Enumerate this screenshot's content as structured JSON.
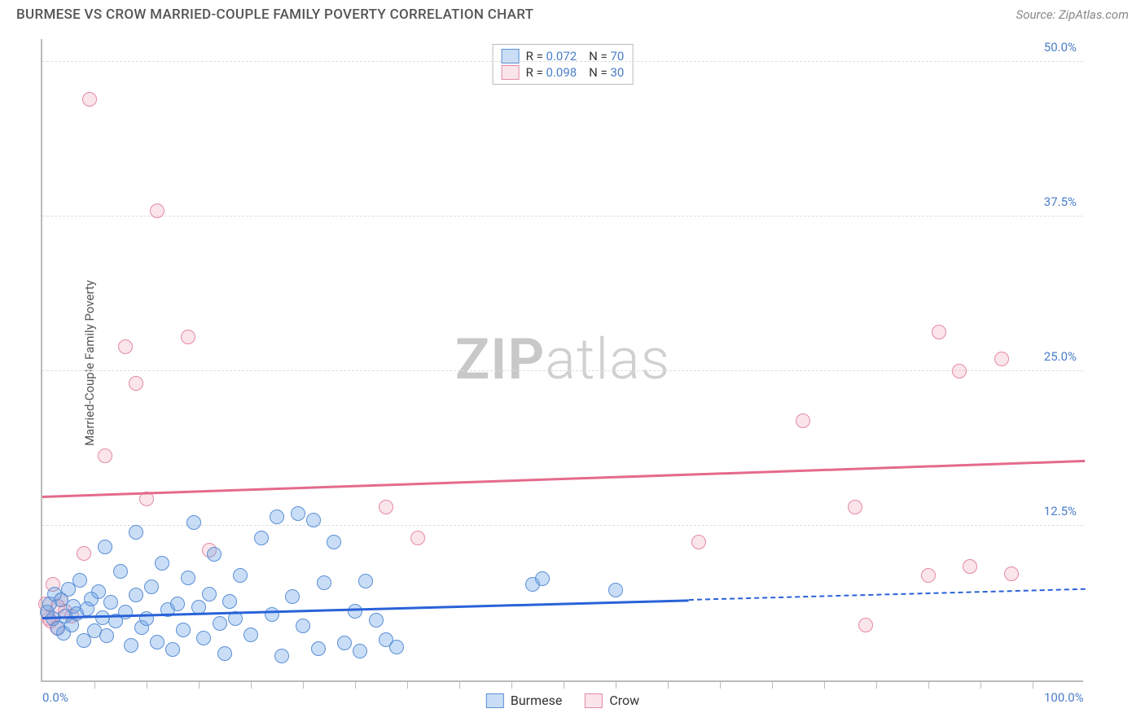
{
  "header": {
    "title": "BURMESE VS CROW MARRIED-COUPLE FAMILY POVERTY CORRELATION CHART",
    "source": "Source: ZipAtlas.com"
  },
  "chart": {
    "type": "scatter",
    "ylabel": "Married-Couple Family Poverty",
    "xlim": [
      0,
      100
    ],
    "ylim": [
      0,
      52
    ],
    "background_color": "#ffffff",
    "grid_color": "#dddddd",
    "axis_color": "#bbbbbb",
    "marker_size": 18,
    "watermark": {
      "left": "ZIP",
      "right": "atlas"
    },
    "yticks": [
      {
        "value": 12.5,
        "label": "12.5%"
      },
      {
        "value": 25.0,
        "label": "25.0%"
      },
      {
        "value": 37.5,
        "label": "37.5%"
      },
      {
        "value": 50.0,
        "label": "50.0%"
      }
    ],
    "xticks_minor": [
      5,
      10,
      15,
      20,
      25,
      30,
      35,
      40,
      45,
      50,
      55,
      60,
      65,
      70,
      75,
      80,
      85,
      90,
      95
    ],
    "xticks_labeled": [
      {
        "value": 0,
        "label": "0.0%"
      },
      {
        "value": 100,
        "label": "100.0%"
      }
    ],
    "series": {
      "burmese": {
        "label": "Burmese",
        "color_fill": "rgba(100,160,230,0.35)",
        "color_stroke": "#5b8fd6",
        "trend_color": "#2962d9",
        "trend": {
          "x1": 0,
          "y1": 5.0,
          "x2": 100,
          "y2": 7.3,
          "solid_until_x": 62
        },
        "points": [
          {
            "x": 0.5,
            "y": 5.5
          },
          {
            "x": 0.7,
            "y": 6.2
          },
          {
            "x": 1.0,
            "y": 5.0
          },
          {
            "x": 1.2,
            "y": 7.0
          },
          {
            "x": 1.5,
            "y": 4.2
          },
          {
            "x": 1.8,
            "y": 6.5
          },
          {
            "x": 2.0,
            "y": 3.8
          },
          {
            "x": 2.2,
            "y": 5.2
          },
          {
            "x": 2.5,
            "y": 7.4
          },
          {
            "x": 2.8,
            "y": 4.5
          },
          {
            "x": 3.0,
            "y": 6.0
          },
          {
            "x": 3.3,
            "y": 5.4
          },
          {
            "x": 3.6,
            "y": 8.1
          },
          {
            "x": 4.0,
            "y": 3.2
          },
          {
            "x": 4.3,
            "y": 5.8
          },
          {
            "x": 4.7,
            "y": 6.6
          },
          {
            "x": 5.0,
            "y": 4.0
          },
          {
            "x": 5.4,
            "y": 7.2
          },
          {
            "x": 5.8,
            "y": 5.1
          },
          {
            "x": 6.2,
            "y": 3.6
          },
          {
            "x": 6.6,
            "y": 6.3
          },
          {
            "x": 7.0,
            "y": 4.8
          },
          {
            "x": 7.5,
            "y": 8.8
          },
          {
            "x": 8.0,
            "y": 5.5
          },
          {
            "x": 8.5,
            "y": 2.8
          },
          {
            "x": 9.0,
            "y": 6.9
          },
          {
            "x": 9.5,
            "y": 4.3
          },
          {
            "x": 10.0,
            "y": 5.0
          },
          {
            "x": 10.5,
            "y": 7.6
          },
          {
            "x": 11.0,
            "y": 3.1
          },
          {
            "x": 11.5,
            "y": 9.5
          },
          {
            "x": 12.0,
            "y": 5.7
          },
          {
            "x": 12.5,
            "y": 2.5
          },
          {
            "x": 13.0,
            "y": 6.2
          },
          {
            "x": 13.5,
            "y": 4.1
          },
          {
            "x": 14.0,
            "y": 8.3
          },
          {
            "x": 14.5,
            "y": 12.8
          },
          {
            "x": 15.0,
            "y": 5.9
          },
          {
            "x": 15.5,
            "y": 3.4
          },
          {
            "x": 16.0,
            "y": 7.0
          },
          {
            "x": 16.5,
            "y": 10.2
          },
          {
            "x": 17.0,
            "y": 4.6
          },
          {
            "x": 17.5,
            "y": 2.2
          },
          {
            "x": 18.0,
            "y": 6.4
          },
          {
            "x": 18.5,
            "y": 5.0
          },
          {
            "x": 19.0,
            "y": 8.5
          },
          {
            "x": 20.0,
            "y": 3.7
          },
          {
            "x": 21.0,
            "y": 11.5
          },
          {
            "x": 22.0,
            "y": 5.3
          },
          {
            "x": 22.5,
            "y": 13.2
          },
          {
            "x": 23.0,
            "y": 2.0
          },
          {
            "x": 24.0,
            "y": 6.8
          },
          {
            "x": 24.5,
            "y": 13.5
          },
          {
            "x": 25.0,
            "y": 4.4
          },
          {
            "x": 26.0,
            "y": 13.0
          },
          {
            "x": 26.5,
            "y": 2.6
          },
          {
            "x": 27.0,
            "y": 7.9
          },
          {
            "x": 28.0,
            "y": 11.2
          },
          {
            "x": 29.0,
            "y": 3.0
          },
          {
            "x": 30.0,
            "y": 5.6
          },
          {
            "x": 30.5,
            "y": 2.4
          },
          {
            "x": 31.0,
            "y": 8.0
          },
          {
            "x": 32.0,
            "y": 4.9
          },
          {
            "x": 33.0,
            "y": 3.3
          },
          {
            "x": 34.0,
            "y": 2.7
          },
          {
            "x": 47.0,
            "y": 7.8
          },
          {
            "x": 48.0,
            "y": 8.2
          },
          {
            "x": 55.0,
            "y": 7.3
          },
          {
            "x": 6.0,
            "y": 10.8
          },
          {
            "x": 9.0,
            "y": 12.0
          }
        ]
      },
      "crow": {
        "label": "Crow",
        "color_fill": "rgba(235,150,170,0.25)",
        "color_stroke": "#e48aa3",
        "trend_color": "#e56a8b",
        "trend": {
          "x1": 0,
          "y1": 14.8,
          "x2": 100,
          "y2": 17.7,
          "solid_until_x": 100
        },
        "points": [
          {
            "x": 0.3,
            "y": 6.2
          },
          {
            "x": 0.6,
            "y": 5.0
          },
          {
            "x": 1.0,
            "y": 7.8
          },
          {
            "x": 1.4,
            "y": 4.3
          },
          {
            "x": 1.8,
            "y": 6.5
          },
          {
            "x": 2.2,
            "y": 5.6
          },
          {
            "x": 4.0,
            "y": 10.3
          },
          {
            "x": 4.5,
            "y": 47.0
          },
          {
            "x": 6.0,
            "y": 18.2
          },
          {
            "x": 8.0,
            "y": 27.0
          },
          {
            "x": 9.0,
            "y": 24.0
          },
          {
            "x": 10.0,
            "y": 14.7
          },
          {
            "x": 11.0,
            "y": 38.0
          },
          {
            "x": 14.0,
            "y": 27.8
          },
          {
            "x": 16.0,
            "y": 10.5
          },
          {
            "x": 33.0,
            "y": 14.0
          },
          {
            "x": 36.0,
            "y": 11.5
          },
          {
            "x": 63.0,
            "y": 11.2
          },
          {
            "x": 73.0,
            "y": 21.0
          },
          {
            "x": 78.0,
            "y": 14.0
          },
          {
            "x": 79.0,
            "y": 4.5
          },
          {
            "x": 85.0,
            "y": 8.5
          },
          {
            "x": 86.0,
            "y": 28.2
          },
          {
            "x": 88.0,
            "y": 25.0
          },
          {
            "x": 89.0,
            "y": 9.2
          },
          {
            "x": 92.0,
            "y": 26.0
          },
          {
            "x": 93.0,
            "y": 8.6
          },
          {
            "x": 0.8,
            "y": 4.8
          },
          {
            "x": 1.5,
            "y": 6.0
          },
          {
            "x": 2.8,
            "y": 5.2
          }
        ]
      }
    },
    "legend_top": [
      {
        "swatch": "blue",
        "r_label": "R = ",
        "r_value": "0.072",
        "n_label": "N = ",
        "n_value": "70"
      },
      {
        "swatch": "pink",
        "r_label": "R = ",
        "r_value": "0.098",
        "n_label": "N = ",
        "n_value": "30"
      }
    ],
    "legend_bottom": [
      {
        "swatch": "blue",
        "label": "Burmese"
      },
      {
        "swatch": "pink",
        "label": "Crow"
      }
    ]
  }
}
